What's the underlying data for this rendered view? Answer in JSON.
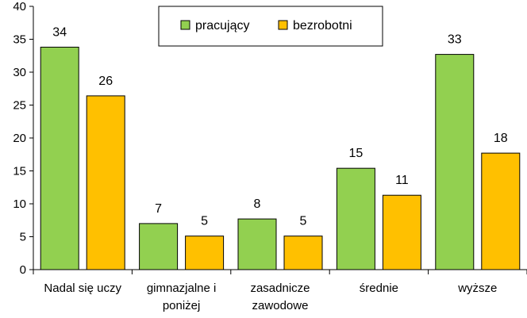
{
  "chart_data": {
    "type": "bar",
    "categories": [
      [
        "Nadal się uczy"
      ],
      [
        "gimnazjalne i",
        "poniżej"
      ],
      [
        "zasadnicze",
        "zawodowe"
      ],
      [
        "średnie"
      ],
      [
        "wyższe"
      ]
    ],
    "series": [
      {
        "name": "pracujący",
        "color": "#92d050",
        "values": [
          33.8,
          7.0,
          7.7,
          15.4,
          32.7
        ],
        "labels": [
          "34",
          "7",
          "8",
          "15",
          "33"
        ]
      },
      {
        "name": "bezrobotni",
        "color": "#ffc000",
        "values": [
          26.4,
          5.1,
          5.1,
          11.3,
          17.7
        ],
        "labels": [
          "26",
          "5",
          "5",
          "11",
          "18"
        ]
      }
    ],
    "y_ticks": [
      "0",
      "5",
      "10",
      "15",
      "20",
      "25",
      "30",
      "35",
      "40"
    ],
    "ylim": [
      0,
      40
    ],
    "grid": false,
    "legend_position": "top-center"
  }
}
